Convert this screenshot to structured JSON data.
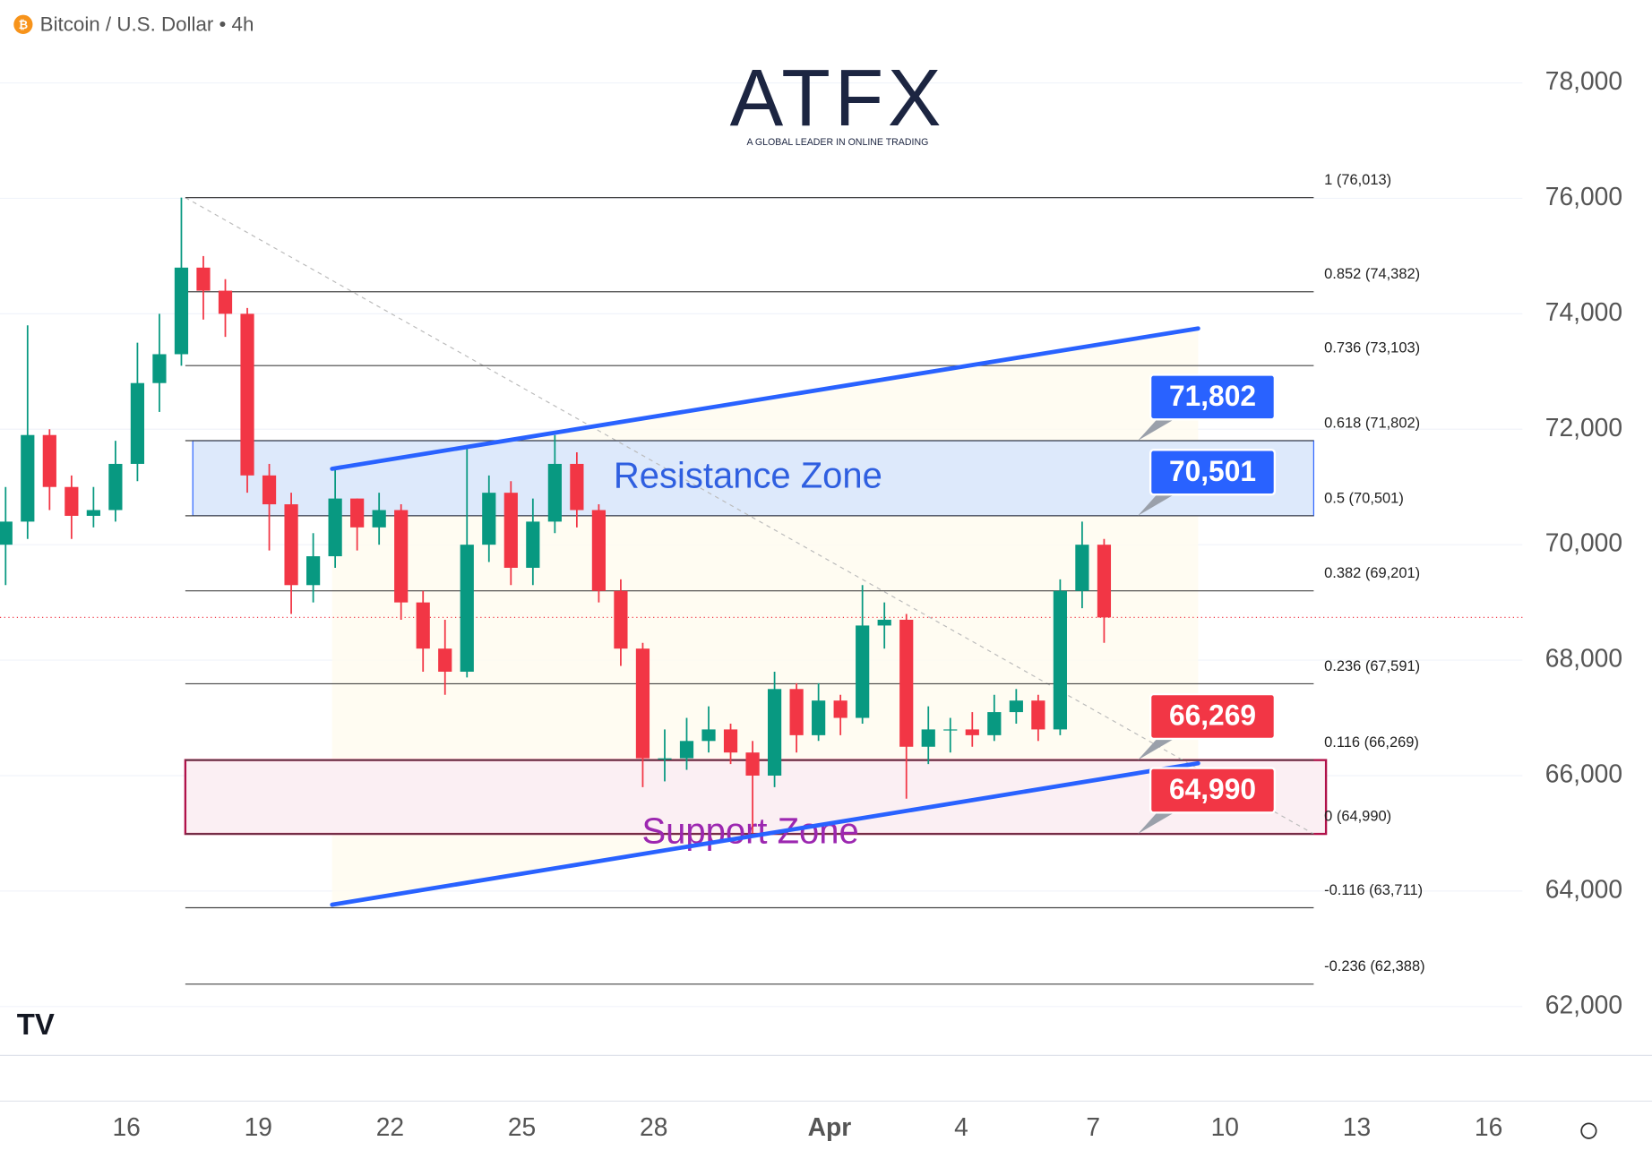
{
  "chart_data": {
    "type": "candlestick",
    "title": "Bitcoin / U.S. Dollar • 4h",
    "logo": {
      "name": "ATFX",
      "tagline": "A GLOBAL LEADER IN ONLINE TRADING"
    },
    "xlim": [
      13.122,
      47.77
    ],
    "ylim": [
      61153,
      79436
    ],
    "xticks": [
      16,
      19,
      22,
      25,
      28,
      {
        "value": 32,
        "label": "Apr"
      },
      {
        "value": 35,
        "label": "4"
      },
      {
        "value": 38,
        "label": "7"
      },
      {
        "value": 41,
        "label": "10"
      },
      {
        "value": 44,
        "label": "13"
      },
      {
        "value": 47,
        "label": "16"
      }
    ],
    "yticks": [
      {
        "value": 62000,
        "label": "62,000"
      },
      {
        "value": 64000,
        "label": "64,000"
      },
      {
        "value": 66000,
        "label": "66,000"
      },
      {
        "value": 68000,
        "label": "68,000"
      },
      {
        "value": 70000,
        "label": "70,000"
      },
      {
        "value": 72000,
        "label": "72,000"
      },
      {
        "value": 74000,
        "label": "74,000"
      },
      {
        "value": 76000,
        "label": "76,000"
      },
      {
        "value": 78000,
        "label": "78,000"
      }
    ],
    "grid": true,
    "up_color": "#089981",
    "down_color": "#f23645",
    "x": [
      13.25,
      13.75,
      14.25,
      14.75,
      15.25,
      15.75,
      16.25,
      16.75,
      17.25,
      17.75,
      18.25,
      18.75,
      19.25,
      19.75,
      20.25,
      20.75,
      21.25,
      21.75,
      22.25,
      22.75,
      23.25,
      23.75,
      24.25,
      24.75,
      25.25,
      25.75,
      26.25,
      26.75,
      27.25,
      27.75,
      28.25,
      28.75,
      29.25,
      29.75,
      30.25,
      30.75,
      31.25,
      31.75,
      32.25,
      32.75,
      33.25,
      33.75,
      34.25,
      34.75,
      35.25,
      35.75,
      36.25,
      36.75,
      37.25,
      37.75,
      38.25
    ],
    "open": [
      70000,
      70400,
      71900,
      71000,
      70500,
      70600,
      71400,
      72800,
      73300,
      74800,
      74400,
      74000,
      71200,
      70700,
      69300,
      69800,
      70800,
      70300,
      70600,
      69000,
      68200,
      67800,
      70000,
      70900,
      69600,
      70400,
      71400,
      70600,
      69200,
      68200,
      66300,
      66300,
      66600,
      66800,
      66400,
      66000,
      67500,
      66700,
      67300,
      67000,
      68600,
      68700,
      66500,
      66800,
      66800,
      66700,
      67100,
      67300,
      66800,
      69200,
      70000
    ],
    "high": [
      71000,
      73800,
      72000,
      71200,
      71000,
      71800,
      73500,
      74000,
      76013,
      75000,
      74600,
      74100,
      71400,
      70900,
      70200,
      71300,
      70800,
      70900,
      70700,
      69200,
      68700,
      71700,
      71200,
      71100,
      70800,
      71900,
      71600,
      70700,
      69400,
      68300,
      66800,
      67000,
      67200,
      66900,
      66600,
      67800,
      67600,
      67600,
      67400,
      69300,
      69000,
      68800,
      67200,
      67000,
      67100,
      67400,
      67500,
      67400,
      69400,
      70400,
      70100
    ],
    "low": [
      69300,
      70100,
      70600,
      70100,
      70300,
      70400,
      71100,
      72300,
      73100,
      73900,
      73600,
      70900,
      69900,
      68800,
      69000,
      69600,
      69900,
      70000,
      68700,
      67800,
      67400,
      67700,
      69700,
      69300,
      69300,
      70200,
      70300,
      69000,
      67900,
      65800,
      65900,
      66100,
      66400,
      66200,
      65000,
      65800,
      66400,
      66600,
      66700,
      66900,
      68200,
      65600,
      66200,
      66400,
      66500,
      66600,
      66900,
      66600,
      66700,
      68900,
      68300
    ],
    "close": [
      70400,
      71900,
      71000,
      70500,
      70600,
      71400,
      72800,
      73300,
      74800,
      74400,
      74000,
      71200,
      70700,
      69300,
      69800,
      70800,
      70300,
      70600,
      69000,
      68200,
      67800,
      70000,
      70900,
      69600,
      70400,
      71400,
      70600,
      69200,
      68200,
      66300,
      66300,
      66600,
      66800,
      66400,
      66000,
      67500,
      66700,
      67300,
      67000,
      68600,
      68700,
      66500,
      66800,
      66800,
      66700,
      67100,
      67300,
      66800,
      69200,
      70000,
      68740
    ],
    "fib_x": [
      17.34,
      43.02
    ],
    "fib": [
      {
        "value": 76013,
        "label": "1 (76,013)"
      },
      {
        "value": 74382,
        "label": "0.852 (74,382)"
      },
      {
        "value": 73103,
        "label": "0.736 (73,103)"
      },
      {
        "value": 71802,
        "label": "0.618 (71,802)"
      },
      {
        "value": 70501,
        "label": "0.5 (70,501)"
      },
      {
        "value": 69201,
        "label": "0.382 (69,201)"
      },
      {
        "value": 67591,
        "label": "0.236 (67,591)"
      },
      {
        "value": 66269,
        "label": "0.116 (66,269)"
      },
      {
        "value": 64990,
        "label": "0 (64,990)"
      },
      {
        "value": 63711,
        "label": "-0.116 (63,711)"
      },
      {
        "value": 62388,
        "label": "-0.236 (62,388)"
      }
    ],
    "zones": [
      {
        "name": "Resistance Zone",
        "x": [
          17.51,
          43.02
        ],
        "values": [
          70501,
          71802
        ],
        "color": "#2962ff",
        "fill": "#dde9fb",
        "text_color": "#2f5fe0"
      },
      {
        "name": "Support Zone",
        "x": [
          17.34,
          43.3
        ],
        "values": [
          64990,
          66269
        ],
        "color": "#b0124a",
        "fill": "#fbeff3",
        "text_color": "#9c27b0"
      }
    ],
    "badges": [
      {
        "value": 71802,
        "label": "71,802",
        "color": "#2962ff"
      },
      {
        "value": 70501,
        "label": "70,501",
        "color": "#2962ff"
      },
      {
        "value": 66269,
        "label": "66,269",
        "color": "#f23645"
      },
      {
        "value": 64990,
        "label": "64,990",
        "color": "#f23645"
      }
    ],
    "trendlines": [
      {
        "x": [
          20.68,
          40.39
        ],
        "values": [
          71315,
          73746
        ],
        "color": "#2962ff"
      },
      {
        "x": [
          20.68,
          40.39
        ],
        "values": [
          63764,
          66214
        ],
        "color": "#2962ff"
      }
    ]
  }
}
